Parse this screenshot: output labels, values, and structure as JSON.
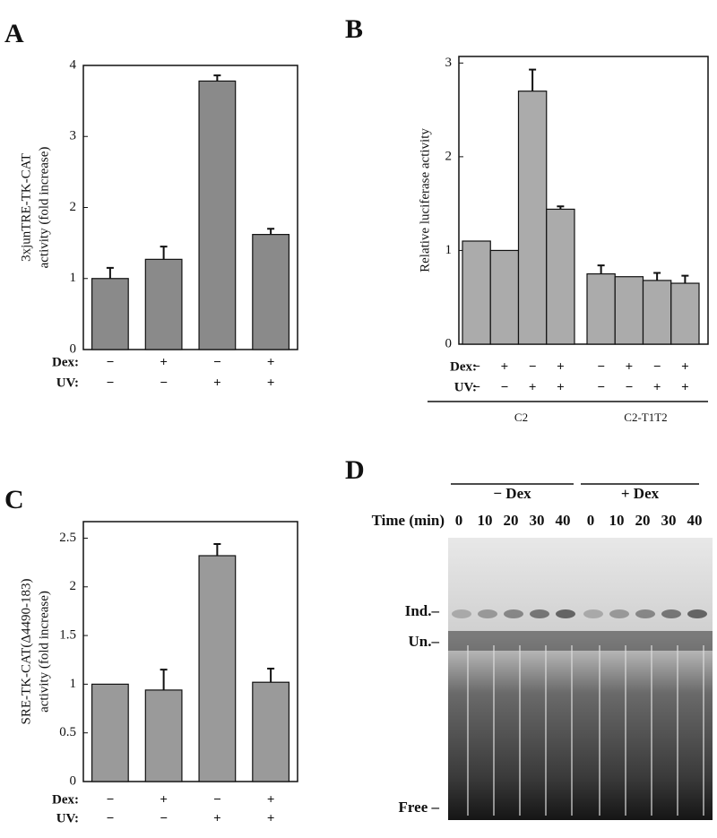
{
  "chart_data": [
    {
      "type": "bar",
      "panel": "A",
      "y_label": [
        "3xjunTRE-TK-CAT",
        "activity (fold increase)"
      ],
      "values": [
        1.0,
        1.27,
        3.78,
        1.62
      ],
      "errors": [
        0.15,
        0.18,
        0.08,
        0.08
      ],
      "color": "#8a8a8a",
      "ylim": [
        0,
        4
      ],
      "yticks": [
        0,
        1,
        2,
        3,
        4
      ],
      "conditions": [
        {
          "label": "Dex:",
          "signs": [
            "−",
            "+",
            "−",
            "+"
          ]
        },
        {
          "label": "UV:",
          "signs": [
            "−",
            "−",
            "+",
            "+"
          ]
        }
      ]
    },
    {
      "type": "bar",
      "panel": "B",
      "y_label": [
        "Relative luciferase activity"
      ],
      "values": [
        1.1,
        1.0,
        2.7,
        1.44,
        0.75,
        0.72,
        0.68,
        0.65
      ],
      "errors": [
        null,
        null,
        0.23,
        0.03,
        0.09,
        null,
        0.08,
        0.08
      ],
      "color": "#ababab",
      "ylim": [
        0,
        3.07
      ],
      "yticks": [
        0,
        1,
        2,
        3
      ],
      "conditions": [
        {
          "label": "Dex:",
          "signs": [
            "−",
            "+",
            "−",
            "+",
            "−",
            "+",
            "−",
            "+"
          ]
        },
        {
          "label": "UV:",
          "signs": [
            "−",
            "−",
            "+",
            "+",
            "−",
            "−",
            "+",
            "+"
          ]
        }
      ],
      "groups": [
        "C2",
        "C2-T1T2"
      ]
    },
    {
      "type": "bar",
      "panel": "C",
      "y_label": [
        "SRE-TK-CAT(Δ4490-183)",
        "activity (fold increase)"
      ],
      "values": [
        1.0,
        0.94,
        2.32,
        1.02
      ],
      "errors": [
        null,
        0.21,
        0.12,
        0.14
      ],
      "color": "#9a9a9a",
      "ylim": [
        0,
        2.67
      ],
      "yticks": [
        0,
        0.5,
        1,
        1.5,
        2,
        2.5
      ],
      "conditions": [
        {
          "label": "Dex:",
          "signs": [
            "−",
            "+",
            "−",
            "+"
          ]
        },
        {
          "label": "UV:",
          "signs": [
            "−",
            "−",
            "+",
            "+"
          ]
        }
      ]
    }
  ],
  "gel": {
    "panel": "D",
    "headers": [
      "− Dex",
      "+ Dex"
    ],
    "time_label": "Time (min)",
    "lanes": [
      "0",
      "10",
      "20",
      "30",
      "40",
      "0",
      "10",
      "20",
      "30",
      "40"
    ],
    "bands": [
      "Ind.–",
      "Un.–",
      "Free –"
    ]
  }
}
